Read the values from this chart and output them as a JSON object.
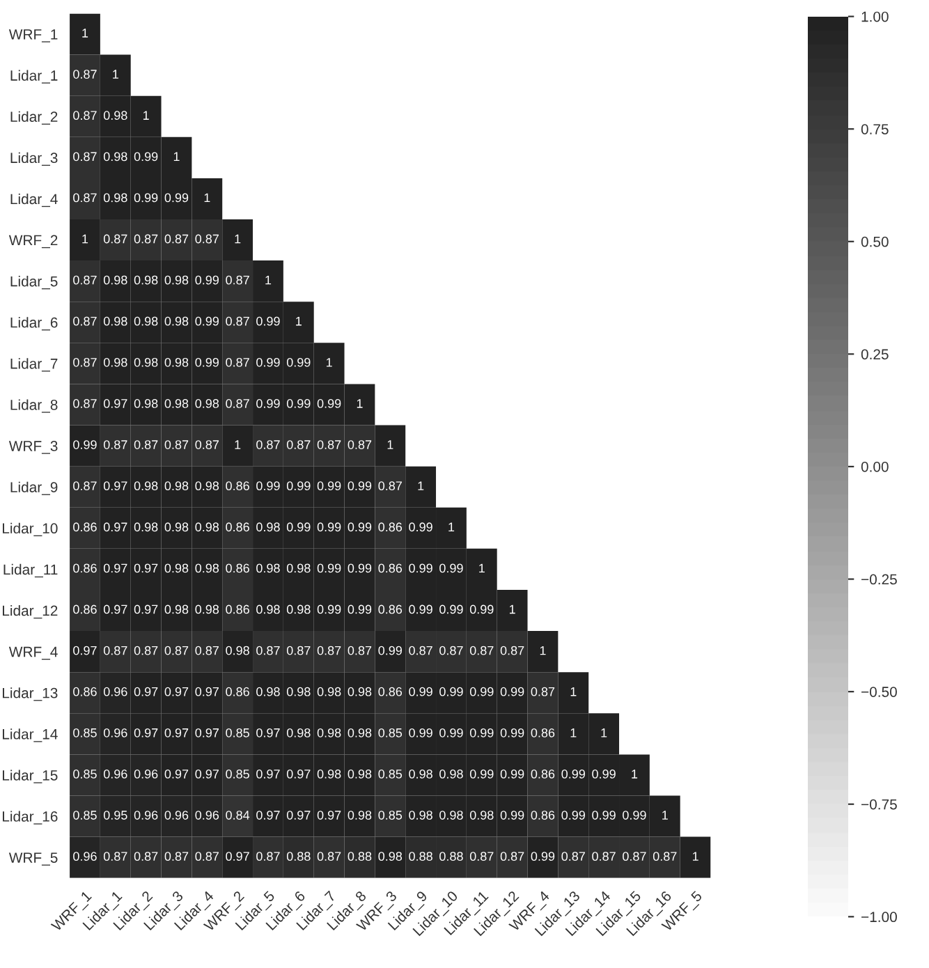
{
  "chart_data": {
    "type": "heatmap",
    "categories": [
      "WRF_1",
      "Lidar_1",
      "Lidar_2",
      "Lidar_3",
      "Lidar_4",
      "WRF_2",
      "Lidar_5",
      "Lidar_6",
      "Lidar_7",
      "Lidar_8",
      "WRF_3",
      "Lidar_9",
      "Lidar_10",
      "Lidar_11",
      "Lidar_12",
      "WRF_4",
      "Lidar_13",
      "Lidar_14",
      "Lidar_15",
      "Lidar_16",
      "WRF_5"
    ],
    "y_categories": [
      "WRF_1",
      "Lidar_1",
      "Lidar_2",
      "Lidar_3",
      "Lidar_4",
      "WRF_2",
      "Lidar_5",
      "Lidar_6",
      "Lidar_7",
      "Lidar_8",
      "WRF_3",
      "Lidar_9",
      "Lidar_10",
      "Lidar_11",
      "Lidar_12",
      "WRF_4",
      "Lidar_13",
      "Lidar_14",
      "Lidar_15",
      "Lidar_16",
      "WRF_5"
    ],
    "cells": [
      [
        1,
        null,
        null,
        null,
        null,
        null,
        null,
        null,
        null,
        null,
        null,
        null,
        null,
        null,
        null,
        null,
        null,
        null,
        null,
        null,
        null
      ],
      [
        0.87,
        1,
        null,
        null,
        null,
        null,
        null,
        null,
        null,
        null,
        null,
        null,
        null,
        null,
        null,
        null,
        null,
        null,
        null,
        null,
        null
      ],
      [
        0.87,
        0.98,
        1,
        null,
        null,
        null,
        null,
        null,
        null,
        null,
        null,
        null,
        null,
        null,
        null,
        null,
        null,
        null,
        null,
        null,
        null
      ],
      [
        0.87,
        0.98,
        0.99,
        1,
        null,
        null,
        null,
        null,
        null,
        null,
        null,
        null,
        null,
        null,
        null,
        null,
        null,
        null,
        null,
        null,
        null
      ],
      [
        0.87,
        0.98,
        0.99,
        0.99,
        1,
        null,
        null,
        null,
        null,
        null,
        null,
        null,
        null,
        null,
        null,
        null,
        null,
        null,
        null,
        null,
        null
      ],
      [
        1,
        0.87,
        0.87,
        0.87,
        0.87,
        1,
        null,
        null,
        null,
        null,
        null,
        null,
        null,
        null,
        null,
        null,
        null,
        null,
        null,
        null,
        null
      ],
      [
        0.87,
        0.98,
        0.98,
        0.98,
        0.99,
        0.87,
        1,
        null,
        null,
        null,
        null,
        null,
        null,
        null,
        null,
        null,
        null,
        null,
        null,
        null,
        null
      ],
      [
        0.87,
        0.98,
        0.98,
        0.98,
        0.99,
        0.87,
        0.99,
        1,
        null,
        null,
        null,
        null,
        null,
        null,
        null,
        null,
        null,
        null,
        null,
        null,
        null
      ],
      [
        0.87,
        0.98,
        0.98,
        0.98,
        0.99,
        0.87,
        0.99,
        0.99,
        1,
        null,
        null,
        null,
        null,
        null,
        null,
        null,
        null,
        null,
        null,
        null,
        null
      ],
      [
        0.87,
        0.97,
        0.98,
        0.98,
        0.98,
        0.87,
        0.99,
        0.99,
        0.99,
        1,
        null,
        null,
        null,
        null,
        null,
        null,
        null,
        null,
        null,
        null,
        null
      ],
      [
        0.99,
        0.87,
        0.87,
        0.87,
        0.87,
        1,
        0.87,
        0.87,
        0.87,
        0.87,
        1,
        null,
        null,
        null,
        null,
        null,
        null,
        null,
        null,
        null,
        null
      ],
      [
        0.87,
        0.97,
        0.98,
        0.98,
        0.98,
        0.86,
        0.99,
        0.99,
        0.99,
        0.99,
        0.87,
        1,
        null,
        null,
        null,
        null,
        null,
        null,
        null,
        null,
        null
      ],
      [
        0.86,
        0.97,
        0.98,
        0.98,
        0.98,
        0.86,
        0.98,
        0.99,
        0.99,
        0.99,
        0.86,
        0.99,
        1,
        null,
        null,
        null,
        null,
        null,
        null,
        null,
        null
      ],
      [
        0.86,
        0.97,
        0.97,
        0.98,
        0.98,
        0.86,
        0.98,
        0.98,
        0.99,
        0.99,
        0.86,
        0.99,
        0.99,
        1,
        null,
        null,
        null,
        null,
        null,
        null,
        null
      ],
      [
        0.86,
        0.97,
        0.97,
        0.98,
        0.98,
        0.86,
        0.98,
        0.98,
        0.99,
        0.99,
        0.86,
        0.99,
        0.99,
        0.99,
        1,
        null,
        null,
        null,
        null,
        null,
        null
      ],
      [
        0.97,
        0.87,
        0.87,
        0.87,
        0.87,
        0.98,
        0.87,
        0.87,
        0.87,
        0.87,
        0.99,
        0.87,
        0.87,
        0.87,
        0.87,
        1,
        null,
        null,
        null,
        null,
        null
      ],
      [
        0.86,
        0.96,
        0.97,
        0.97,
        0.97,
        0.86,
        0.98,
        0.98,
        0.98,
        0.98,
        0.86,
        0.99,
        0.99,
        0.99,
        0.99,
        0.87,
        1,
        null,
        null,
        null,
        null
      ],
      [
        0.85,
        0.96,
        0.97,
        0.97,
        0.97,
        0.85,
        0.97,
        0.98,
        0.98,
        0.98,
        0.85,
        0.99,
        0.99,
        0.99,
        0.99,
        0.86,
        1,
        1,
        null,
        null,
        null
      ],
      [
        0.85,
        0.96,
        0.96,
        0.97,
        0.97,
        0.85,
        0.97,
        0.97,
        0.98,
        0.98,
        0.85,
        0.98,
        0.98,
        0.99,
        0.99,
        0.86,
        0.99,
        0.99,
        1,
        null,
        null
      ],
      [
        0.85,
        0.95,
        0.96,
        0.96,
        0.96,
        0.84,
        0.97,
        0.97,
        0.97,
        0.98,
        0.85,
        0.98,
        0.98,
        0.98,
        0.99,
        0.86,
        0.99,
        0.99,
        0.99,
        1,
        null
      ],
      [
        0.96,
        0.87,
        0.87,
        0.87,
        0.87,
        0.97,
        0.87,
        0.88,
        0.87,
        0.88,
        0.98,
        0.88,
        0.88,
        0.87,
        0.87,
        0.99,
        0.87,
        0.87,
        0.87,
        0.87,
        1
      ]
    ],
    "data_labels": true,
    "clim": [
      -1,
      1
    ],
    "cticks": [
      {
        "value": -1,
        "label": "−1.00"
      },
      {
        "value": -0.75,
        "label": "−0.75"
      },
      {
        "value": -0.5,
        "label": "−0.50"
      },
      {
        "value": -0.25,
        "label": "−0.25"
      },
      {
        "value": 0,
        "label": "0.00"
      },
      {
        "value": 0.25,
        "label": "0.25"
      },
      {
        "value": 0.5,
        "label": "0.50"
      },
      {
        "value": 0.75,
        "label": "0.75"
      },
      {
        "value": 1,
        "label": "1.00"
      }
    ]
  }
}
